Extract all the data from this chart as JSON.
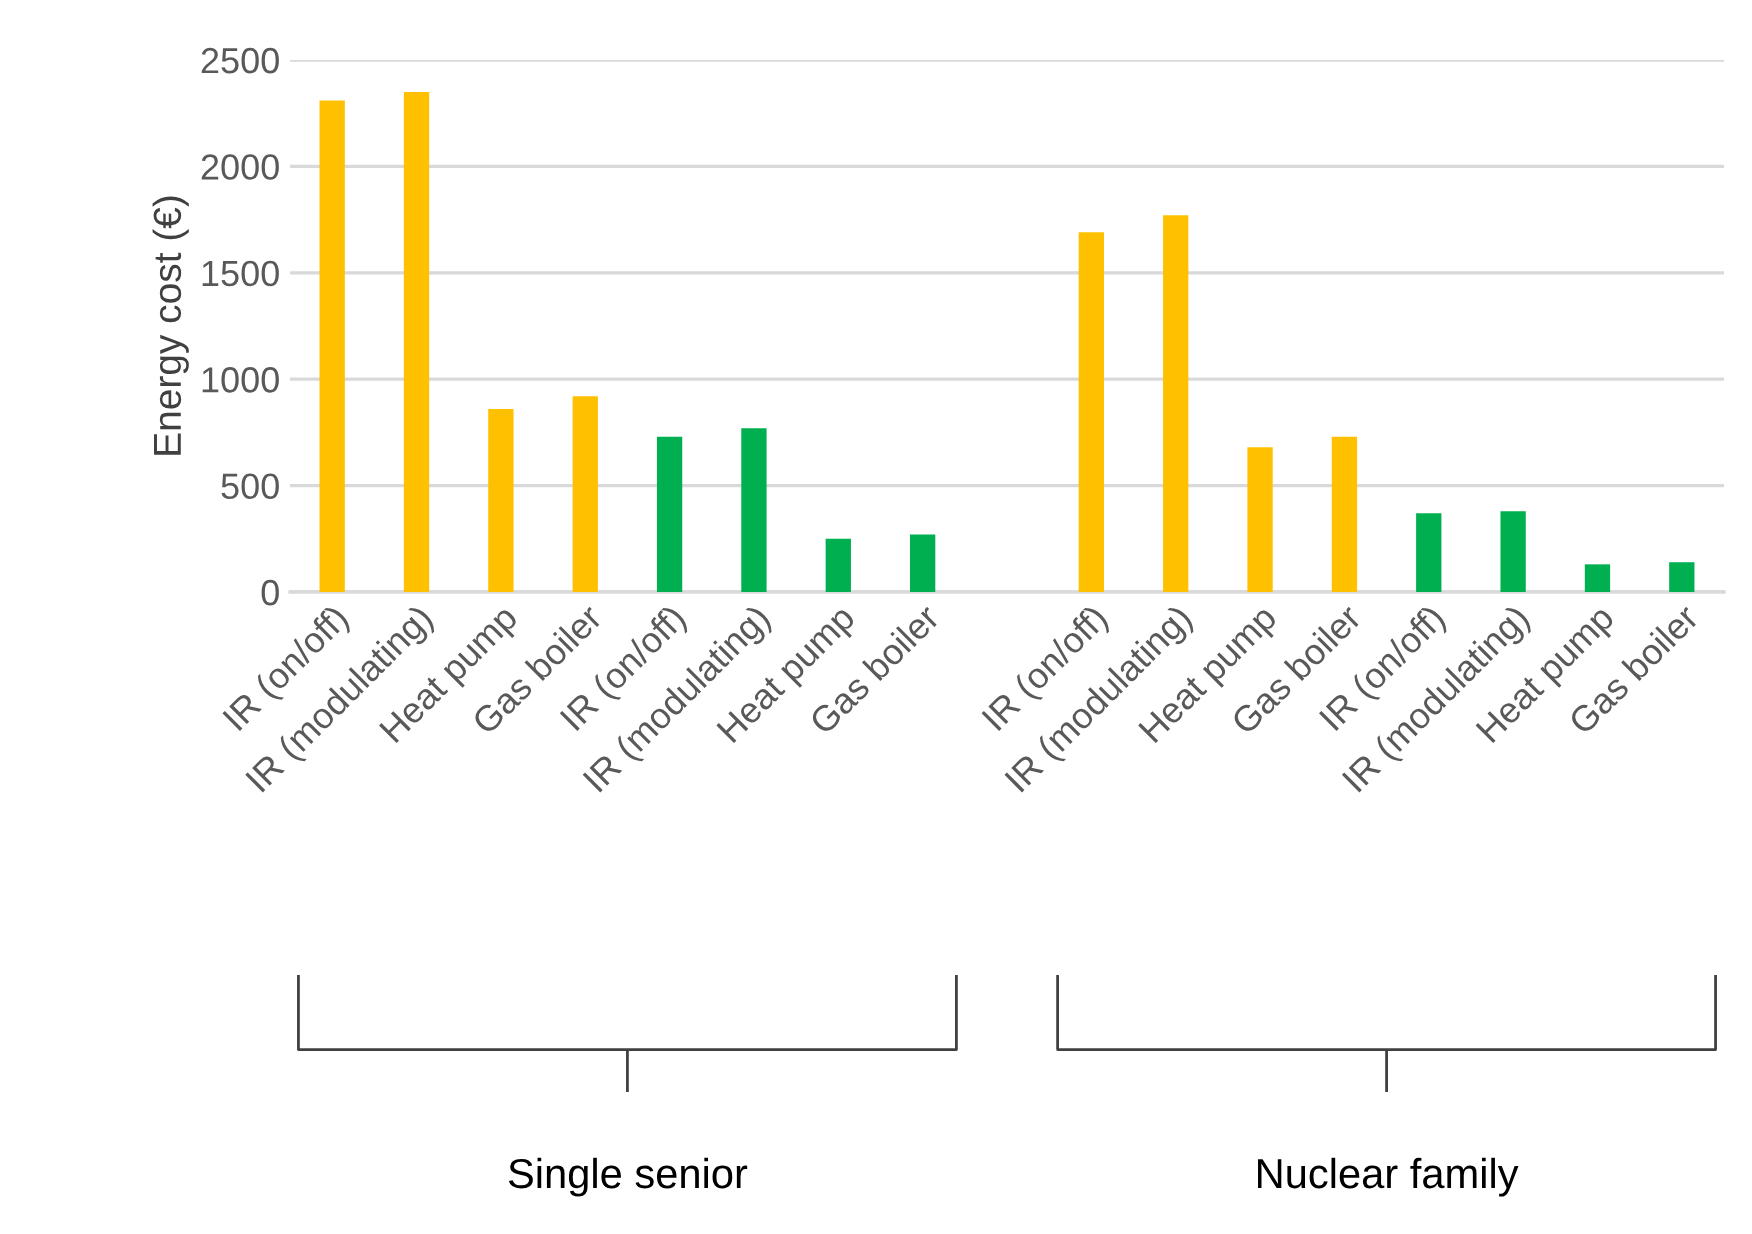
{
  "chart_data": {
    "type": "bar",
    "ylabel": "Energy cost (€)",
    "categories": [
      "IR (on/off)",
      "IR (modulating)",
      "Heat pump",
      "Gas boiler",
      "IR (on/off)",
      "IR (modulating)",
      "Heat pump",
      "Gas boiler",
      null,
      "IR (on/off)",
      "IR (modulating)",
      "Heat pump",
      "Gas boiler",
      "IR (on/off)",
      "IR (modulating)",
      "Heat pump",
      "Gas boiler"
    ],
    "values": [
      2310,
      2350,
      860,
      920,
      730,
      770,
      250,
      270,
      null,
      1690,
      1770,
      680,
      730,
      370,
      380,
      130,
      140
    ],
    "colors": [
      "#ffc000",
      "#ffc000",
      "#ffc000",
      "#ffc000",
      "#00b050",
      "#00b050",
      "#00b050",
      "#00b050",
      null,
      "#ffc000",
      "#ffc000",
      "#ffc000",
      "#ffc000",
      "#00b050",
      "#00b050",
      "#00b050",
      "#00b050"
    ],
    "ylim": [
      0,
      2500
    ],
    "yticks": [
      0,
      500,
      1000,
      1500,
      2000,
      2500
    ],
    "grid": "y",
    "annotations": [
      "Single senior",
      "Nuclear family"
    ]
  }
}
